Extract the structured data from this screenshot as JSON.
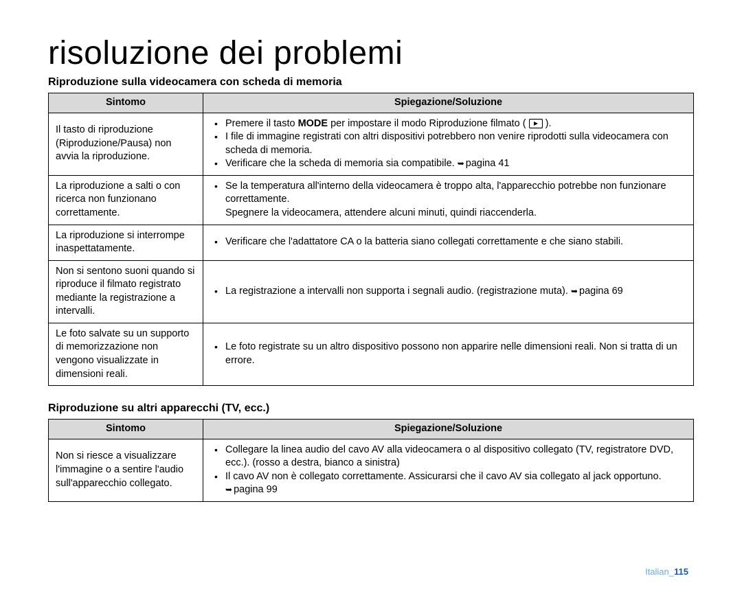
{
  "page": {
    "title": "risoluzione dei problemi",
    "footer_lang": "Italian",
    "footer_page": "115"
  },
  "section1": {
    "title": "Riproduzione sulla videocamera con scheda di memoria",
    "header_sym": "Sintomo",
    "header_sol": "Spiegazione/Soluzione",
    "rows": [
      {
        "sym": "Il tasto di riproduzione (Riproduzione/Pausa) non avvia la riproduzione.",
        "sol": [
          {
            "pre": "Premere il tasto ",
            "bold": "MODE",
            "post": " per impostare il modo Riproduzione filmato ( ",
            "icon": true,
            "tail": " )."
          },
          {
            "text": "I file di immagine registrati con altri dispositivi potrebbero non venire riprodotti sulla videocamera con scheda di memoria."
          },
          {
            "text": "Verificare che la scheda di memoria sia compatibile. ",
            "ref": "pagina 41"
          }
        ]
      },
      {
        "sym": "La riproduzione a salti o con ricerca non funzionano correttamente.",
        "sol": [
          {
            "text": "Se la temperatura all'interno della videocamera è troppo alta, l'apparecchio potrebbe non funzionare correttamente."
          },
          {
            "plain": "Spegnere la videocamera, attendere alcuni minuti, quindi riaccenderla."
          }
        ]
      },
      {
        "sym": "La riproduzione si interrompe inaspettatamente.",
        "sol": [
          {
            "text": "Verificare che l'adattatore CA o la batteria siano collegati correttamente e che siano stabili."
          }
        ]
      },
      {
        "sym": "Non si sentono suoni quando si riproduce il filmato registrato mediante la registrazione a intervalli.",
        "sol": [
          {
            "text": "La registrazione a intervalli non supporta i segnali audio. (registrazione muta). ",
            "ref": "pagina 69"
          }
        ]
      },
      {
        "sym": "Le foto salvate su un supporto di memorizzazione non vengono visualizzate in dimensioni reali.",
        "sol": [
          {
            "text": "Le foto registrate su un altro dispositivo possono non apparire nelle dimensioni reali. Non si tratta di un errore."
          }
        ]
      }
    ]
  },
  "section2": {
    "title": "Riproduzione su altri apparecchi (TV, ecc.)",
    "header_sym": "Sintomo",
    "header_sol": "Spiegazione/Soluzione",
    "rows": [
      {
        "sym": "Non si riesce a visualizzare l'immagine o a sentire l'audio sull'apparecchio collegato.",
        "sol": [
          {
            "text": "Collegare la linea audio del cavo AV alla videocamera o al dispositivo collegato (TV, registratore DVD, ecc.). (rosso a destra, bianco a sinistra)"
          },
          {
            "text": "Il cavo AV non è collegato correttamente. Assicurarsi che il cavo AV sia collegato al jack opportuno. ",
            "ref": "pagina 99"
          }
        ]
      }
    ]
  }
}
